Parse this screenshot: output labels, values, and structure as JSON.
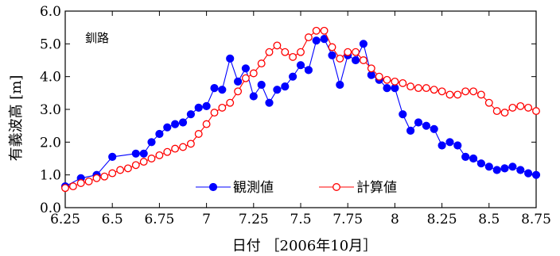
{
  "chart_data": {
    "type": "line",
    "annotation": "釧路",
    "ylabel": "有義波高 [m]",
    "xlabel": "日付 ［2006年10月］",
    "xlim": [
      6.25,
      8.75
    ],
    "ylim": [
      0.0,
      6.0
    ],
    "x_ticks": [
      "6.25",
      "6.5",
      "6.75",
      "7",
      "7.25",
      "7.5",
      "7.75",
      "8",
      "8.25",
      "8.5",
      "8.75"
    ],
    "y_ticks": [
      "0.0",
      "1.0",
      "2.0",
      "3.0",
      "4.0",
      "5.0",
      "6.0"
    ],
    "legend_position": "bottom-center",
    "series": [
      {
        "name": "観測値",
        "color": "#0000ff",
        "marker": "filled-circle",
        "x": [
          6.25,
          6.333,
          6.417,
          6.5,
          6.625,
          6.667,
          6.708,
          6.75,
          6.792,
          6.833,
          6.875,
          6.917,
          6.958,
          7.0,
          7.042,
          7.083,
          7.125,
          7.167,
          7.208,
          7.25,
          7.292,
          7.333,
          7.375,
          7.417,
          7.458,
          7.5,
          7.542,
          7.583,
          7.625,
          7.667,
          7.708,
          7.75,
          7.792,
          7.833,
          7.875,
          7.917,
          7.958,
          8.0,
          8.042,
          8.083,
          8.125,
          8.167,
          8.208,
          8.25,
          8.292,
          8.333,
          8.375,
          8.417,
          8.458,
          8.5,
          8.542,
          8.583,
          8.625,
          8.667,
          8.708,
          8.75
        ],
        "y": [
          0.65,
          0.9,
          1.0,
          1.55,
          1.65,
          1.65,
          2.0,
          2.25,
          2.45,
          2.55,
          2.6,
          2.85,
          3.05,
          3.1,
          3.65,
          3.6,
          4.55,
          3.85,
          4.25,
          3.4,
          3.75,
          3.2,
          3.6,
          3.7,
          4.0,
          4.35,
          4.2,
          5.1,
          5.15,
          4.65,
          3.75,
          4.65,
          4.5,
          5.0,
          4.05,
          3.9,
          3.65,
          3.65,
          2.85,
          2.35,
          2.6,
          2.5,
          2.4,
          1.9,
          2.0,
          1.9,
          1.55,
          1.5,
          1.35,
          1.25,
          1.15,
          1.2,
          1.25,
          1.15,
          1.05,
          1.0
        ]
      },
      {
        "name": "計算値",
        "color": "#ff0000",
        "marker": "open-circle",
        "x": [
          6.25,
          6.292,
          6.333,
          6.375,
          6.417,
          6.458,
          6.5,
          6.542,
          6.583,
          6.625,
          6.667,
          6.708,
          6.75,
          6.792,
          6.833,
          6.875,
          6.917,
          6.958,
          7.0,
          7.042,
          7.083,
          7.125,
          7.167,
          7.208,
          7.25,
          7.292,
          7.333,
          7.375,
          7.417,
          7.458,
          7.5,
          7.542,
          7.583,
          7.625,
          7.667,
          7.708,
          7.75,
          7.792,
          7.833,
          7.875,
          7.917,
          7.958,
          8.0,
          8.042,
          8.083,
          8.125,
          8.167,
          8.208,
          8.25,
          8.292,
          8.333,
          8.375,
          8.417,
          8.458,
          8.5,
          8.542,
          8.583,
          8.625,
          8.667,
          8.708,
          8.75
        ],
        "y": [
          0.6,
          0.65,
          0.75,
          0.8,
          0.9,
          0.95,
          1.05,
          1.15,
          1.2,
          1.3,
          1.4,
          1.5,
          1.6,
          1.7,
          1.8,
          1.85,
          1.95,
          2.25,
          2.55,
          2.9,
          3.05,
          3.2,
          3.55,
          3.95,
          4.1,
          4.4,
          4.75,
          4.95,
          4.75,
          4.6,
          4.75,
          5.2,
          5.4,
          5.4,
          4.9,
          4.55,
          4.75,
          4.75,
          4.5,
          4.25,
          4.0,
          3.9,
          3.85,
          3.8,
          3.7,
          3.65,
          3.65,
          3.6,
          3.55,
          3.45,
          3.45,
          3.55,
          3.55,
          3.45,
          3.2,
          2.95,
          2.9,
          3.05,
          3.1,
          3.05,
          2.95
        ]
      }
    ]
  }
}
